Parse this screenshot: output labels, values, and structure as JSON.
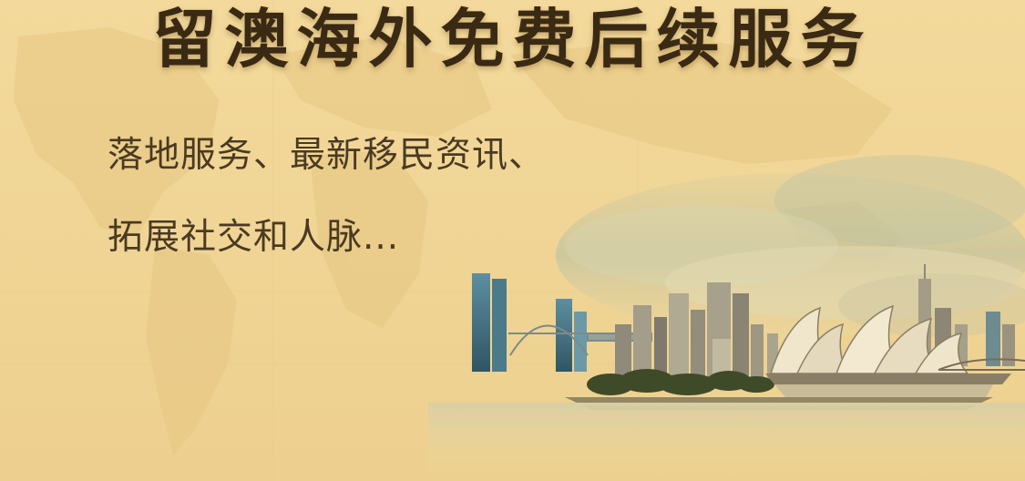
{
  "banner": {
    "title": "留澳海外免费后续服务",
    "subtitle_line1": "落地服务、最新移民资讯、",
    "subtitle_line2": "拓展社交和人脉..."
  },
  "colors": {
    "background": "#f0d596",
    "title_text": "#3a2a14",
    "body_text": "#4a3a22"
  },
  "illustration": {
    "subject": "sydney-skyline-with-opera-house"
  }
}
